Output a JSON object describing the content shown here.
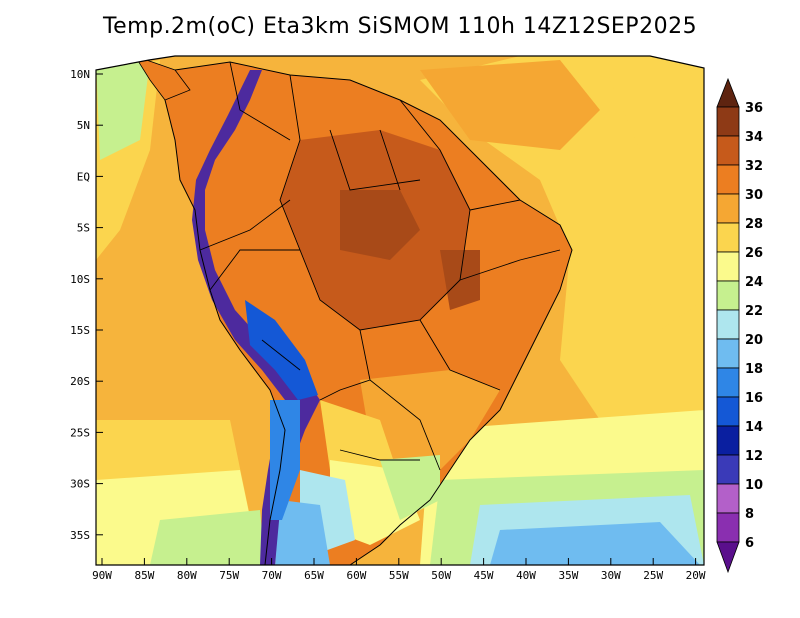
{
  "title": "Temp.2m(oC) Eta3km SiSMOM 110h 14Z12SEP2025",
  "map": {
    "variable": "2 m temperature",
    "units": "oC",
    "lat_range": [
      -38,
      11
    ],
    "lon_range": [
      -91,
      -20
    ],
    "lat_ticks": [
      "10N",
      "5N",
      "EQ",
      "5S",
      "10S",
      "15S",
      "20S",
      "25S",
      "30S",
      "35S"
    ],
    "lon_ticks": [
      "90W",
      "85W",
      "80W",
      "75W",
      "70W",
      "65W",
      "60W",
      "55W",
      "50W",
      "45W",
      "40W",
      "35W",
      "30W",
      "25W",
      "20W"
    ]
  },
  "colorbar": {
    "levels": [
      "6",
      "8",
      "10",
      "12",
      "14",
      "16",
      "18",
      "20",
      "22",
      "24",
      "26",
      "28",
      "30",
      "32",
      "34",
      "36"
    ],
    "colors": [
      "#5a0f8c",
      "#8a2fb0",
      "#b360c9",
      "#3a3ab8",
      "#0a1fa0",
      "#1458d6",
      "#2f86e6",
      "#6fbcf0",
      "#aee6ee",
      "#c6f08f",
      "#fbfa8c",
      "#fbd54e",
      "#f5a733",
      "#ec7e21",
      "#c65a1b",
      "#8e3a16",
      "#5e2410"
    ]
  },
  "colors": {
    "ocean_warm": "#f6b43c",
    "ocean_mid": "#fbd54e",
    "ocean_cool": "#fbfa8c",
    "land_hot": "#e8862a",
    "land_hotter": "#c65a1b",
    "andes": "#4d2a9e",
    "south_cold": "#6fbcf0"
  }
}
